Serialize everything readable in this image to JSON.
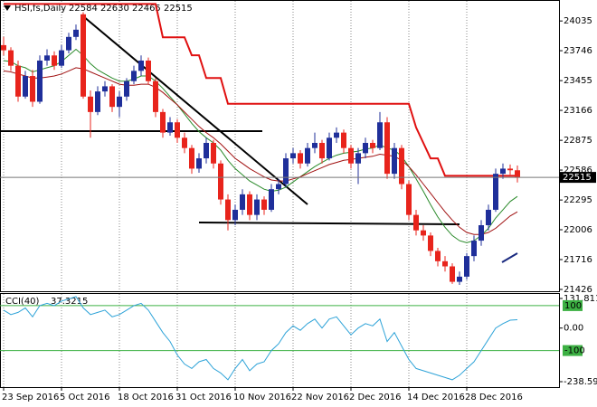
{
  "chart_data": [
    {
      "type": "candlestick",
      "title": "HSI,fs,Daily",
      "header_values": "22584 22630 22465 22515",
      "categories": [
        "23 Sep 2016",
        null,
        null,
        null,
        null,
        null,
        null,
        null,
        "5 Oct 2016",
        null,
        null,
        null,
        null,
        null,
        null,
        null,
        "18 Oct 2016",
        null,
        null,
        null,
        null,
        null,
        null,
        null,
        "31 Oct 2016",
        null,
        null,
        null,
        null,
        null,
        null,
        null,
        "10 Nov 2016",
        null,
        null,
        null,
        null,
        null,
        null,
        null,
        "22 Nov 2016",
        null,
        null,
        null,
        null,
        null,
        null,
        null,
        "2 Dec 2016",
        null,
        null,
        null,
        null,
        null,
        null,
        null,
        "14 Dec 2016",
        null,
        null,
        null,
        null,
        null,
        null,
        null,
        "28 Dec 2016",
        null,
        null,
        null,
        null,
        null,
        null,
        null
      ],
      "ohlc": [
        [
          23800,
          23880,
          23700,
          23750
        ],
        [
          23750,
          23780,
          23550,
          23600
        ],
        [
          23600,
          23650,
          23250,
          23300
        ],
        [
          23300,
          23550,
          23280,
          23500
        ],
        [
          23500,
          23560,
          23200,
          23250
        ],
        [
          23250,
          23700,
          23230,
          23650
        ],
        [
          23650,
          23760,
          23600,
          23700
        ],
        [
          23700,
          23740,
          23560,
          23600
        ],
        [
          23600,
          23800,
          23580,
          23750
        ],
        [
          23750,
          23920,
          23720,
          23880
        ],
        [
          23880,
          24000,
          23850,
          23950
        ],
        [
          24100,
          24120,
          23280,
          23300
        ],
        [
          23300,
          23360,
          22900,
          23150
        ],
        [
          23150,
          23400,
          23120,
          23350
        ],
        [
          23350,
          23450,
          23300,
          23400
        ],
        [
          23400,
          23420,
          23150,
          23200
        ],
        [
          23200,
          23350,
          23100,
          23300
        ],
        [
          23300,
          23480,
          23260,
          23450
        ],
        [
          23450,
          23600,
          23420,
          23550
        ],
        [
          23550,
          23700,
          23500,
          23650
        ],
        [
          23650,
          23680,
          23420,
          23450
        ],
        [
          23450,
          23480,
          23100,
          23150
        ],
        [
          23150,
          23180,
          22900,
          22950
        ],
        [
          22950,
          23100,
          22920,
          23050
        ],
        [
          23050,
          23080,
          22850,
          22900
        ],
        [
          22900,
          22950,
          22750,
          22800
        ],
        [
          22800,
          22830,
          22550,
          22600
        ],
        [
          22600,
          22750,
          22560,
          22700
        ],
        [
          22700,
          22900,
          22650,
          22850
        ],
        [
          22850,
          22880,
          22600,
          22650
        ],
        [
          22650,
          22680,
          22250,
          22300
        ],
        [
          22300,
          22350,
          22000,
          22100
        ],
        [
          22100,
          22250,
          22050,
          22200
        ],
        [
          22200,
          22400,
          22150,
          22350
        ],
        [
          22350,
          22380,
          22100,
          22150
        ],
        [
          22150,
          22350,
          22100,
          22300
        ],
        [
          22300,
          22330,
          22150,
          22200
        ],
        [
          22200,
          22450,
          22180,
          22400
        ],
        [
          22400,
          22500,
          22350,
          22450
        ],
        [
          22450,
          22750,
          22420,
          22700
        ],
        [
          22700,
          22800,
          22650,
          22750
        ],
        [
          22750,
          22780,
          22600,
          22650
        ],
        [
          22650,
          22850,
          22620,
          22800
        ],
        [
          22800,
          22950,
          22750,
          22850
        ],
        [
          22850,
          22880,
          22650,
          22700
        ],
        [
          22700,
          22950,
          22680,
          22900
        ],
        [
          22900,
          23000,
          22850,
          22950
        ],
        [
          22950,
          22980,
          22750,
          22800
        ],
        [
          22800,
          22830,
          22600,
          22650
        ],
        [
          22650,
          22800,
          22450,
          22750
        ],
        [
          22750,
          22900,
          22700,
          22850
        ],
        [
          22850,
          22880,
          22750,
          22800
        ],
        [
          22800,
          23150,
          22780,
          23050
        ],
        [
          23050,
          23100,
          22500,
          22550
        ],
        [
          22550,
          22850,
          22500,
          22800
        ],
        [
          22800,
          22830,
          22400,
          22450
        ],
        [
          22450,
          22480,
          22100,
          22150
        ],
        [
          22150,
          22200,
          21950,
          22000
        ],
        [
          22000,
          22050,
          21900,
          21950
        ],
        [
          21950,
          21980,
          21750,
          21800
        ],
        [
          21800,
          21830,
          21650,
          21700
        ],
        [
          21700,
          21750,
          21600,
          21650
        ],
        [
          21650,
          21680,
          21480,
          21500
        ],
        [
          21500,
          21600,
          21470,
          21550
        ],
        [
          21550,
          21780,
          21520,
          21750
        ],
        [
          21750,
          21950,
          21700,
          21900
        ],
        [
          21900,
          22100,
          21850,
          22050
        ],
        [
          22050,
          22250,
          22000,
          22200
        ],
        [
          22200,
          22600,
          22180,
          22550
        ],
        [
          22550,
          22650,
          22500,
          22600
        ],
        [
          22600,
          22640,
          22540,
          22584
        ],
        [
          22584,
          22630,
          22465,
          22515
        ]
      ],
      "up_color": "#1f2f9a",
      "down_color": "#e8241c",
      "series": [
        {
          "color": "#e01010",
          "width": 2,
          "values": [
            24200,
            24200,
            24200,
            24200,
            24200,
            24200,
            24200,
            24200,
            24200,
            24200,
            24200,
            24200,
            24200,
            24200,
            24200,
            24200,
            24200,
            24200,
            24200,
            24200,
            24200,
            24200,
            23877,
            23877,
            23877,
            23877,
            23702,
            23702,
            23480,
            23480,
            23480,
            23230,
            23230,
            23230,
            23230,
            23230,
            23230,
            23230,
            23230,
            23230,
            23230,
            23230,
            23230,
            23230,
            23230,
            23230,
            23230,
            23230,
            23230,
            23230,
            23230,
            23230,
            23230,
            23230,
            23230,
            23230,
            23230,
            23000,
            22850,
            22700,
            22700,
            22530,
            22530,
            22530,
            22530,
            22530,
            22530,
            22530,
            22530,
            22530,
            22530,
            22530
          ]
        },
        {
          "color": "#2a8a2a",
          "width": 1,
          "values": [
            23650,
            23640,
            23600,
            23580,
            23540,
            23560,
            23580,
            23600,
            23640,
            23700,
            23760,
            23700,
            23620,
            23560,
            23520,
            23480,
            23450,
            23450,
            23470,
            23500,
            23500,
            23450,
            23380,
            23300,
            23220,
            23130,
            23040,
            22960,
            22900,
            22850,
            22780,
            22680,
            22600,
            22540,
            22480,
            22440,
            22400,
            22380,
            22390,
            22420,
            22470,
            22520,
            22570,
            22620,
            22660,
            22700,
            22730,
            22750,
            22760,
            22770,
            22790,
            22800,
            22830,
            22800,
            22780,
            22720,
            22620,
            22500,
            22380,
            22250,
            22130,
            22030,
            21950,
            21900,
            21880,
            21900,
            21950,
            22020,
            22120,
            22200,
            22280,
            22330
          ]
        },
        {
          "color": "#a01010",
          "width": 1,
          "values": [
            23550,
            23540,
            23520,
            23500,
            23480,
            23480,
            23490,
            23500,
            23520,
            23550,
            23580,
            23570,
            23540,
            23510,
            23480,
            23450,
            23420,
            23410,
            23410,
            23420,
            23420,
            23390,
            23340,
            23280,
            23220,
            23150,
            23080,
            23010,
            22950,
            22900,
            22840,
            22770,
            22700,
            22650,
            22600,
            22560,
            22520,
            22490,
            22480,
            22480,
            22500,
            22520,
            22550,
            22580,
            22610,
            22640,
            22660,
            22680,
            22690,
            22700,
            22710,
            22720,
            22740,
            22730,
            22720,
            22680,
            22620,
            22540,
            22450,
            22360,
            22270,
            22180,
            22100,
            22030,
            21980,
            21960,
            21960,
            21980,
            22020,
            22080,
            22140,
            22180
          ]
        }
      ],
      "ylim": [
        21426,
        24210
      ],
      "yticks": [
        24035,
        23746,
        23455,
        23166,
        22875,
        22586,
        22295,
        22006,
        21716,
        21426
      ],
      "grid": true
    },
    {
      "type": "line",
      "title": "CCI(40)",
      "series": [
        {
          "color": "#2ea3d8",
          "values": [
            80,
            60,
            70,
            90,
            50,
            100,
            110,
            100,
            120,
            130,
            140,
            90,
            60,
            70,
            80,
            50,
            60,
            80,
            100,
            110,
            80,
            30,
            -20,
            -60,
            -120,
            -160,
            -180,
            -150,
            -140,
            -180,
            -200,
            -230,
            -180,
            -140,
            -190,
            -160,
            -150,
            -100,
            -70,
            -20,
            10,
            -10,
            20,
            40,
            0,
            40,
            50,
            10,
            -30,
            0,
            20,
            10,
            40,
            -60,
            -20,
            -80,
            -140,
            -180,
            -190,
            -200,
            -210,
            -220,
            -230,
            -210,
            -180,
            -150,
            -100,
            -50,
            0,
            20,
            35,
            37.3215
          ]
        }
      ],
      "ylim": [
        -238.593,
        131.8119
      ],
      "yticks": [
        131.8119,
        {
          "value": 0,
          "label": "0.00"
        },
        -238.593
      ],
      "levels": [
        100,
        -100
      ],
      "level_color": "#3cb043"
    }
  ]
}
